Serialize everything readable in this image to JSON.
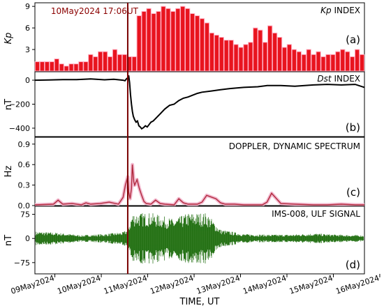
{
  "chart_data": [
    {
      "type": "bar",
      "panel": "(a)",
      "title_var": "Kp",
      "title_rest": " INDEX",
      "ylabel": "Kp",
      "ylim": [
        0,
        9.5
      ],
      "yticks": [
        3,
        6,
        9
      ],
      "event_label": "10May2024 17:06UT",
      "values": [
        1.3,
        1.3,
        1.3,
        1.3,
        1.7,
        1.0,
        0.7,
        1.0,
        1.0,
        1.3,
        1.3,
        2.3,
        2.0,
        2.7,
        2.7,
        2.0,
        3.0,
        2.3,
        2.3,
        2.0,
        2.0,
        7.7,
        8.3,
        8.7,
        8.0,
        8.3,
        9.0,
        8.7,
        8.3,
        8.7,
        9.0,
        8.7,
        8.0,
        7.7,
        7.3,
        6.7,
        5.3,
        5.0,
        4.7,
        4.3,
        4.3,
        3.7,
        3.3,
        3.7,
        4.0,
        6.0,
        5.7,
        4.0,
        6.3,
        5.3,
        4.7,
        3.3,
        3.7,
        3.0,
        2.7,
        2.3,
        3.0,
        2.3,
        2.7,
        2.0,
        2.3,
        2.3,
        2.7,
        3.0,
        2.7,
        2.0,
        3.0,
        2.3
      ]
    },
    {
      "type": "line",
      "panel": "(b)",
      "title_var": "Dst",
      "title_rest": " INDEX",
      "ylabel": "nT",
      "ylim": [
        -470,
        70
      ],
      "yticks": [
        0,
        -200,
        -400
      ],
      "x": [
        0,
        0.3,
        0.6,
        0.9,
        1.2,
        1.5,
        1.7,
        1.9,
        1.94,
        1.97,
        2.0,
        2.02,
        2.04,
        2.06,
        2.08,
        2.1,
        2.12,
        2.15,
        2.18,
        2.21,
        2.24,
        2.27,
        2.3,
        2.34,
        2.38,
        2.42,
        2.46,
        2.5,
        2.55,
        2.6,
        2.65,
        2.7,
        2.75,
        2.8,
        2.9,
        3.0,
        3.1,
        3.2,
        3.3,
        3.4,
        3.5,
        3.6,
        3.8,
        4.0,
        4.2,
        4.5,
        4.8,
        5.0,
        5.3,
        5.6,
        6.0,
        6.3,
        6.6,
        6.9,
        7.1
      ],
      "y": [
        0,
        2,
        5,
        5,
        10,
        3,
        8,
        0,
        -5,
        10,
        20,
        40,
        -20,
        -120,
        -200,
        -260,
        -300,
        -330,
        -350,
        -340,
        -380,
        -390,
        -405,
        -395,
        -380,
        -390,
        -370,
        -350,
        -340,
        -320,
        -300,
        -280,
        -260,
        -240,
        -210,
        -200,
        -170,
        -150,
        -140,
        -125,
        -110,
        -100,
        -90,
        -80,
        -70,
        -60,
        -55,
        -45,
        -45,
        -50,
        -40,
        -35,
        -40,
        -35,
        -60
      ]
    },
    {
      "type": "line",
      "panel": "(c)",
      "title": "DOPPLER, DYNAMIC SPECTRUM",
      "ylabel": "Hz",
      "ylim": [
        0,
        1.0
      ],
      "yticks": [
        0.0,
        0.3,
        0.6,
        0.9
      ],
      "x": [
        0,
        0.4,
        0.5,
        0.6,
        0.8,
        1.0,
        1.1,
        1.2,
        1.4,
        1.6,
        1.8,
        1.9,
        1.95,
        2.0,
        2.02,
        2.05,
        2.08,
        2.1,
        2.13,
        2.15,
        2.2,
        2.25,
        2.3,
        2.35,
        2.4,
        2.5,
        2.6,
        2.7,
        2.8,
        3.0,
        3.1,
        3.2,
        3.3,
        3.5,
        3.6,
        3.7,
        3.9,
        4.0,
        4.1,
        4.3,
        4.5,
        4.9,
        5.0,
        5.1,
        5.3,
        5.6,
        6.0,
        6.3,
        6.6,
        6.9,
        7.1
      ],
      "y": [
        0.01,
        0.02,
        0.08,
        0.02,
        0.03,
        0.01,
        0.04,
        0.02,
        0.03,
        0.05,
        0.02,
        0.12,
        0.3,
        0.42,
        0.2,
        0.1,
        0.25,
        0.6,
        0.35,
        0.3,
        0.38,
        0.25,
        0.15,
        0.06,
        0.03,
        0.02,
        0.08,
        0.03,
        0.02,
        0.01,
        0.1,
        0.04,
        0.02,
        0.02,
        0.05,
        0.15,
        0.1,
        0.04,
        0.02,
        0.02,
        0.01,
        0.01,
        0.05,
        0.18,
        0.03,
        0.02,
        0.01,
        0.01,
        0.02,
        0.01,
        0.01
      ]
    },
    {
      "type": "area",
      "panel": "(d)",
      "title": "IMS-008, ULF SIGNAL",
      "ylabel": "nT",
      "ylim": [
        -110,
        100
      ],
      "yticks": [
        75,
        0,
        -75
      ],
      "envelope_x": [
        0,
        0.5,
        1.0,
        1.5,
        1.9,
        2.0,
        2.1,
        2.5,
        3.0,
        3.3,
        3.7,
        4.0,
        4.5,
        5.0,
        5.5,
        6.0,
        6.5,
        7.1
      ],
      "envelope_amp": [
        22,
        18,
        10,
        14,
        20,
        30,
        80,
        80,
        60,
        80,
        80,
        28,
        14,
        12,
        12,
        16,
        12,
        10
      ]
    }
  ],
  "x_axis": {
    "label": "TIME, UT",
    "tick_labels": [
      "09May2024",
      "10May2024",
      "11May2024",
      "12May2024",
      "13May2024",
      "14May2024",
      "15May2024",
      "16May2024"
    ],
    "xlim": [
      0,
      7.1
    ]
  },
  "event_marker_x": 2.0,
  "colors": {
    "bar_fill": "#e8141e",
    "bar_edge": "#ffb0c4",
    "dst_line": "#000000",
    "doppler_line": "#b0283c",
    "doppler_glow": "#f2b8ce",
    "ulf_fill": "#1a6b0a",
    "event_line": "#7a0000"
  }
}
